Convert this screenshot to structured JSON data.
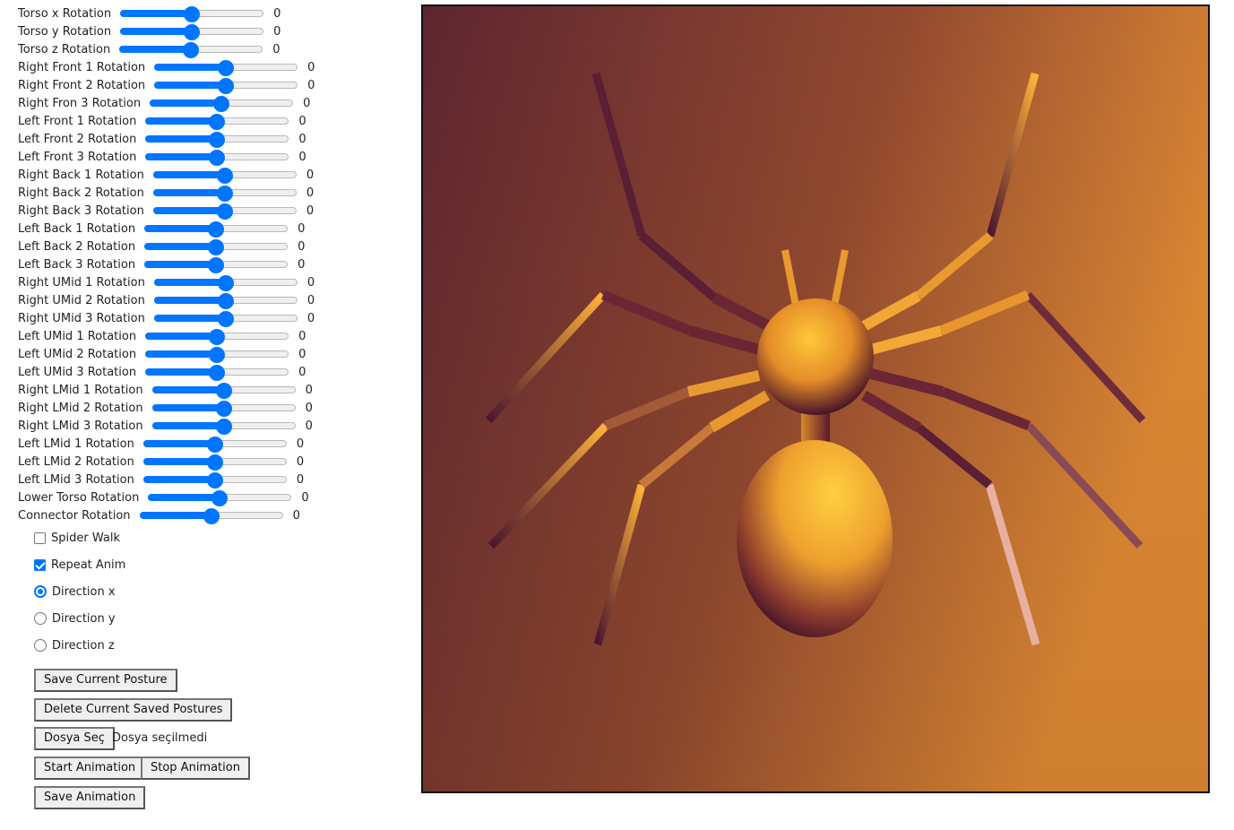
{
  "sliders": [
    {
      "label": "Torso x Rotation",
      "value": "0"
    },
    {
      "label": "Torso y Rotation",
      "value": "0"
    },
    {
      "label": "Torso z Rotation",
      "value": "0"
    },
    {
      "label": "Right Front 1 Rotation",
      "value": "0"
    },
    {
      "label": "Right Front 2 Rotation",
      "value": "0"
    },
    {
      "label": "Right Fron 3 Rotation",
      "value": "0"
    },
    {
      "label": "Left Front 1 Rotation",
      "value": "0"
    },
    {
      "label": "Left Front 2 Rotation",
      "value": "0"
    },
    {
      "label": "Left Front 3 Rotation",
      "value": "0"
    },
    {
      "label": "Right Back 1 Rotation",
      "value": "0"
    },
    {
      "label": "Right Back 2 Rotation",
      "value": "0"
    },
    {
      "label": "Right Back 3 Rotation",
      "value": "0"
    },
    {
      "label": "Left Back 1 Rotation",
      "value": "0"
    },
    {
      "label": "Left Back 2 Rotation",
      "value": "0"
    },
    {
      "label": "Left Back 3 Rotation",
      "value": "0"
    },
    {
      "label": "Right UMid 1 Rotation",
      "value": "0"
    },
    {
      "label": "Right UMid 2 Rotation",
      "value": "0"
    },
    {
      "label": "Right UMid 3 Rotation",
      "value": "0"
    },
    {
      "label": "Left UMid 1 Rotation",
      "value": "0"
    },
    {
      "label": "Left UMid 2 Rotation",
      "value": "0"
    },
    {
      "label": "Left UMid 3 Rotation",
      "value": "0"
    },
    {
      "label": "Right LMid 1 Rotation",
      "value": "0"
    },
    {
      "label": "Right LMid 2 Rotation",
      "value": "0"
    },
    {
      "label": "Right LMid 3 Rotation",
      "value": "0"
    },
    {
      "label": "Left LMid 1 Rotation",
      "value": "0"
    },
    {
      "label": "Left LMid 2 Rotation",
      "value": "0"
    },
    {
      "label": "Left LMid 3 Rotation",
      "value": "0"
    },
    {
      "label": "Lower Torso Rotation",
      "value": "0"
    },
    {
      "label": "Connector Rotation",
      "value": "0"
    }
  ],
  "slider_fraction": 0.5,
  "checkboxes": [
    {
      "label": "Spider Walk",
      "checked": false
    },
    {
      "label": "Repeat Anim",
      "checked": true
    }
  ],
  "radios": [
    {
      "label": "Direction x",
      "checked": true
    },
    {
      "label": "Direction y",
      "checked": false
    },
    {
      "label": "Direction z",
      "checked": false
    }
  ],
  "buttons": {
    "save_posture": "Save Current Posture",
    "delete_postures": "Delete Current Saved Postures",
    "choose_file": "Dosya Seç",
    "start_animation": "Start Animation",
    "stop_animation": "Stop Animation",
    "save_animation": "Save Animation"
  },
  "file_status": "Dosya seçilmedi",
  "colors": {
    "accent": "#0075ff",
    "background_dark": "#5e2530",
    "background_light": "#e08a34",
    "body": "#f3a93a"
  }
}
